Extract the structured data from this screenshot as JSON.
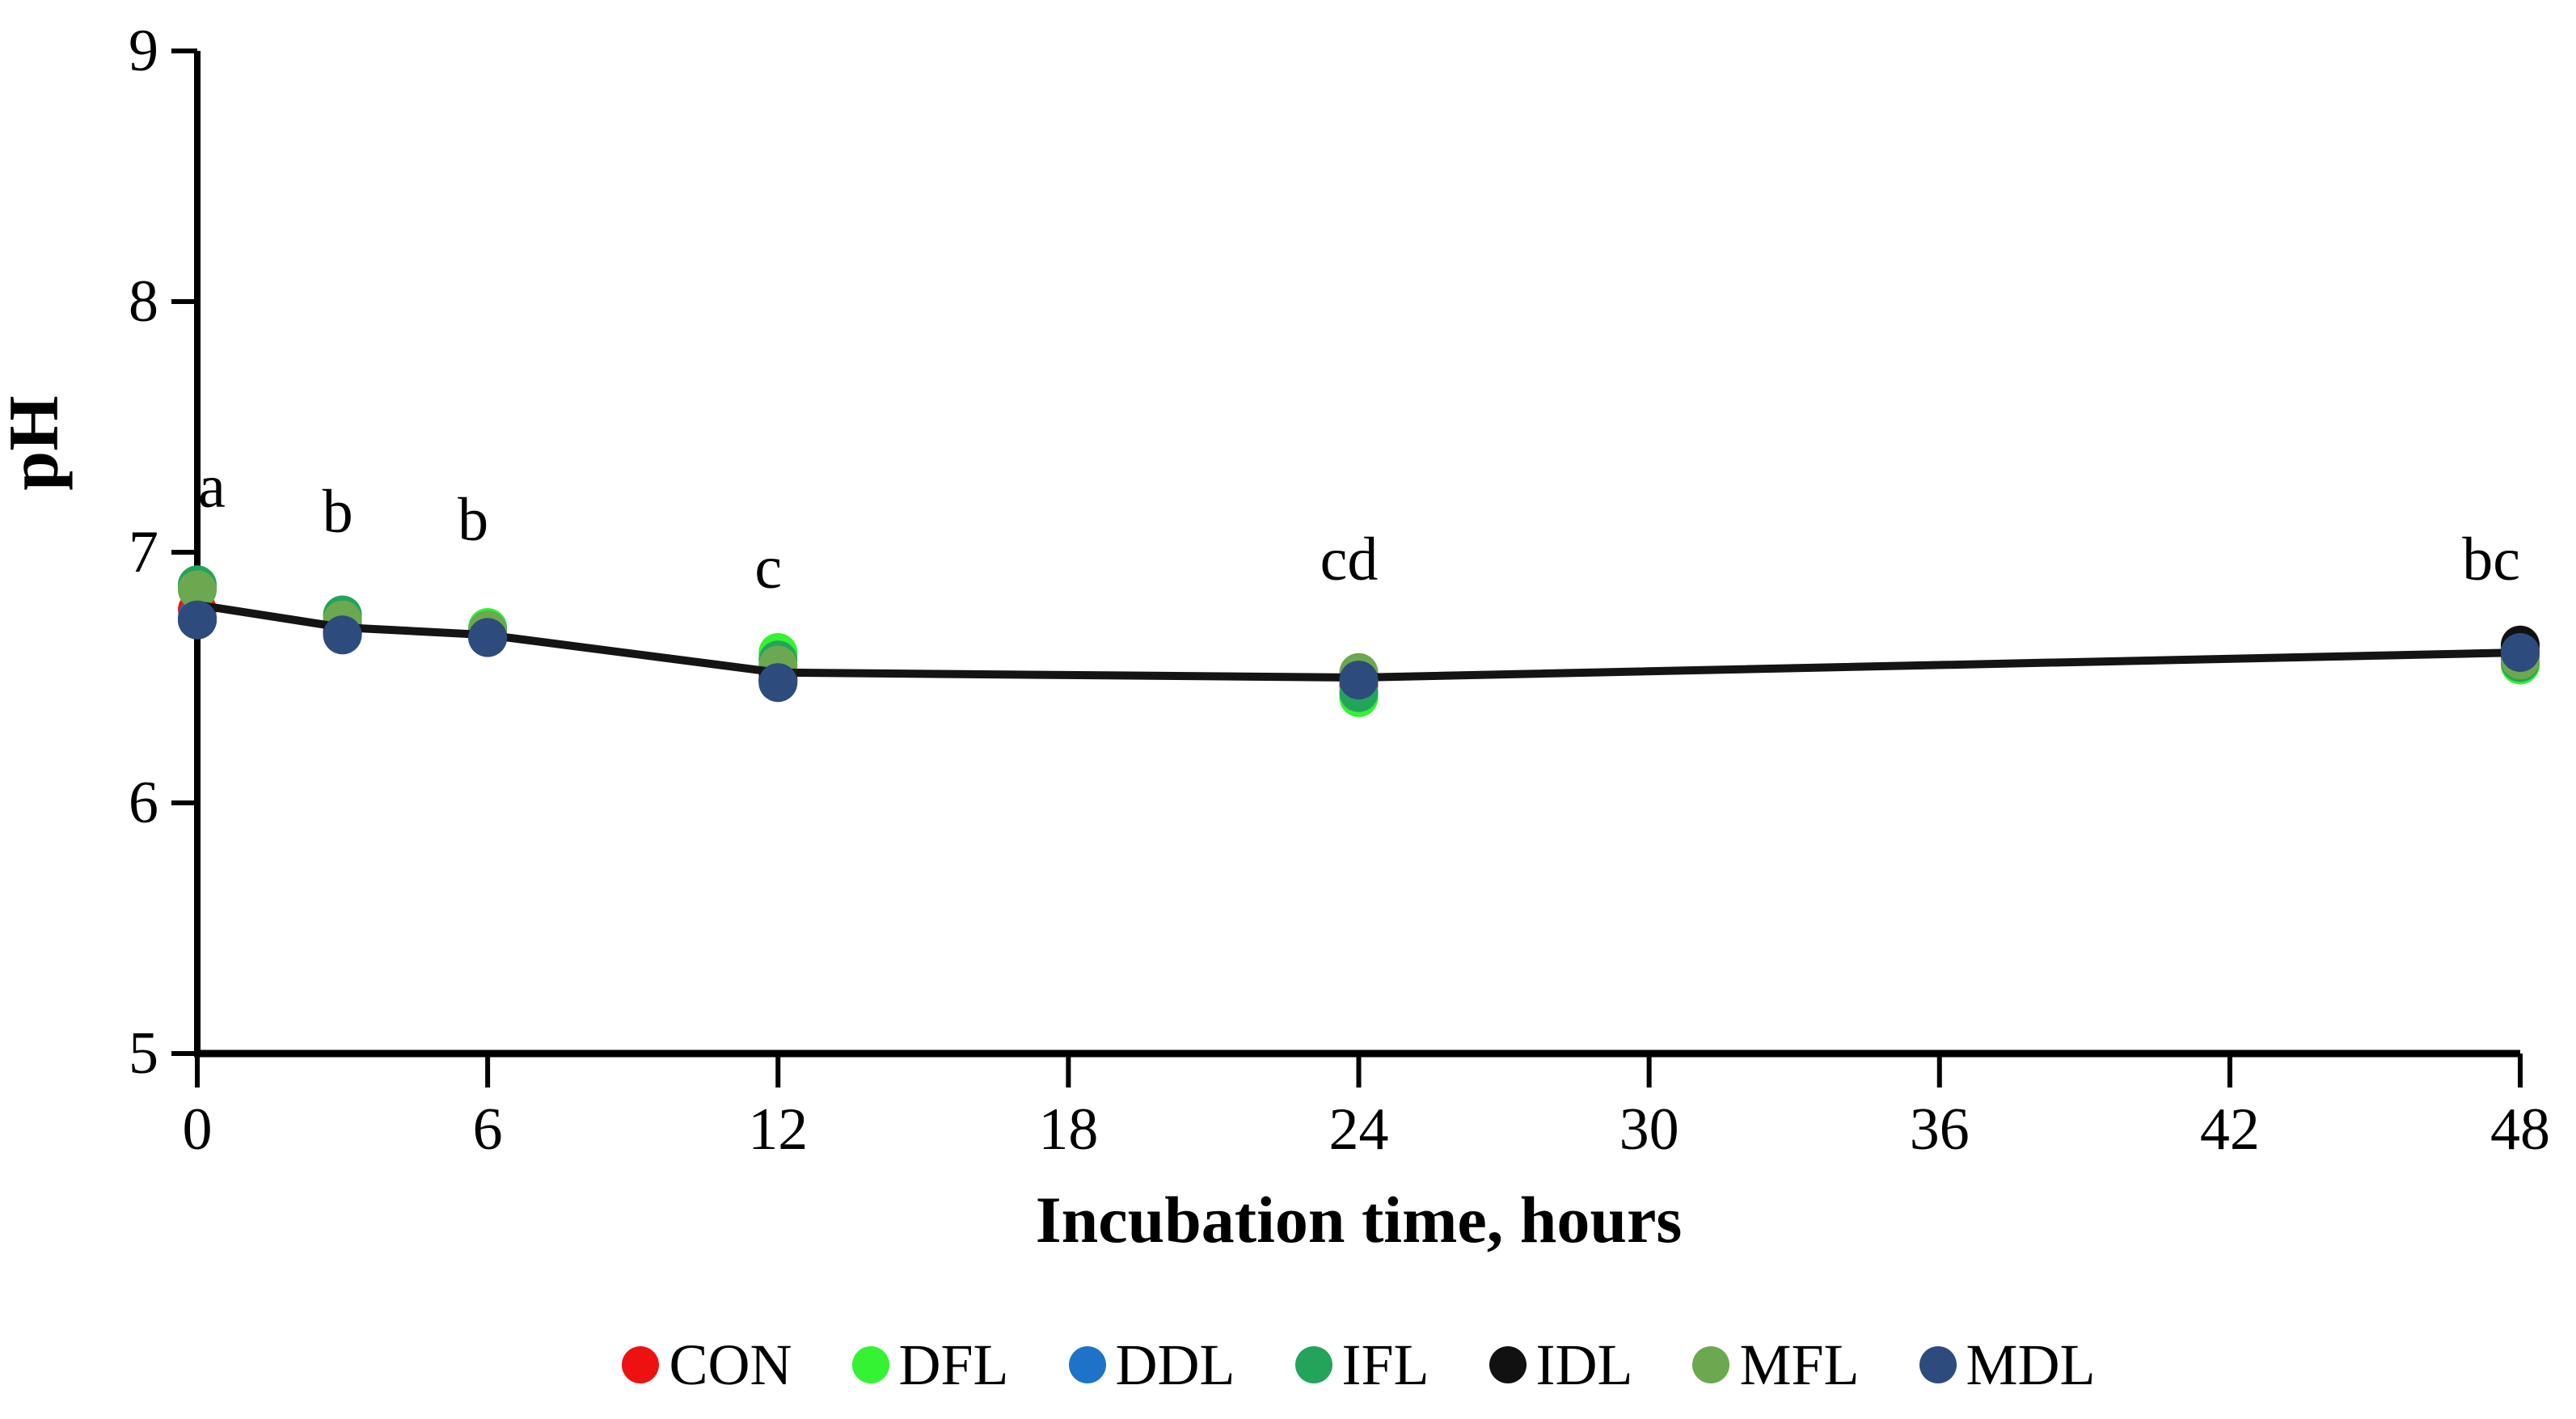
{
  "chart_data": {
    "type": "line",
    "title": "",
    "xlabel": "Incubation time, hours",
    "ylabel": "pH",
    "x": [
      0,
      3,
      6,
      12,
      24,
      48
    ],
    "xlim": [
      0,
      48
    ],
    "ylim": [
      5,
      9
    ],
    "xticks": [
      0,
      6,
      12,
      18,
      24,
      30,
      36,
      42,
      48
    ],
    "yticks": [
      5,
      6,
      7,
      8,
      9
    ],
    "grid": false,
    "legend_position": "bottom",
    "axis_color": "#000000",
    "marker_shape": "circle",
    "series": [
      {
        "name": "CON",
        "color": "#ee1111",
        "values": [
          6.77,
          6.71,
          6.67,
          6.52,
          6.47,
          6.58
        ]
      },
      {
        "name": "DFL",
        "color": "#33f333",
        "values": [
          6.86,
          6.74,
          6.7,
          6.6,
          6.42,
          6.55
        ]
      },
      {
        "name": "DDL",
        "color": "#1e73c8",
        "values": [
          6.74,
          6.68,
          6.66,
          6.49,
          6.5,
          6.61
        ]
      },
      {
        "name": "IFL",
        "color": "#23a45b",
        "values": [
          6.87,
          6.75,
          6.69,
          6.57,
          6.44,
          6.56
        ]
      },
      {
        "name": "IDL",
        "color": "#111111",
        "values": [
          6.73,
          6.68,
          6.66,
          6.49,
          6.5,
          6.63
        ]
      },
      {
        "name": "MFL",
        "color": "#6ba84f",
        "values": [
          6.85,
          6.73,
          6.69,
          6.55,
          6.52,
          6.57
        ]
      },
      {
        "name": "MDL",
        "color": "#2e4b7d",
        "values": [
          6.73,
          6.67,
          6.66,
          6.48,
          6.49,
          6.6
        ]
      }
    ],
    "trend_line": {
      "color": "#141414",
      "x": [
        0,
        3,
        6,
        12,
        24,
        48
      ],
      "y": [
        6.79,
        6.7,
        6.67,
        6.52,
        6.5,
        6.6
      ]
    },
    "annotations": [
      {
        "label": "a",
        "x": 0.3,
        "y": 7.26
      },
      {
        "label": "b",
        "x": 2.9,
        "y": 7.16
      },
      {
        "label": "b",
        "x": 5.7,
        "y": 7.13
      },
      {
        "label": "c",
        "x": 11.8,
        "y": 6.94
      },
      {
        "label": "cd",
        "x": 23.8,
        "y": 6.97
      },
      {
        "label": "bc",
        "x": 47.4,
        "y": 6.97
      }
    ]
  }
}
